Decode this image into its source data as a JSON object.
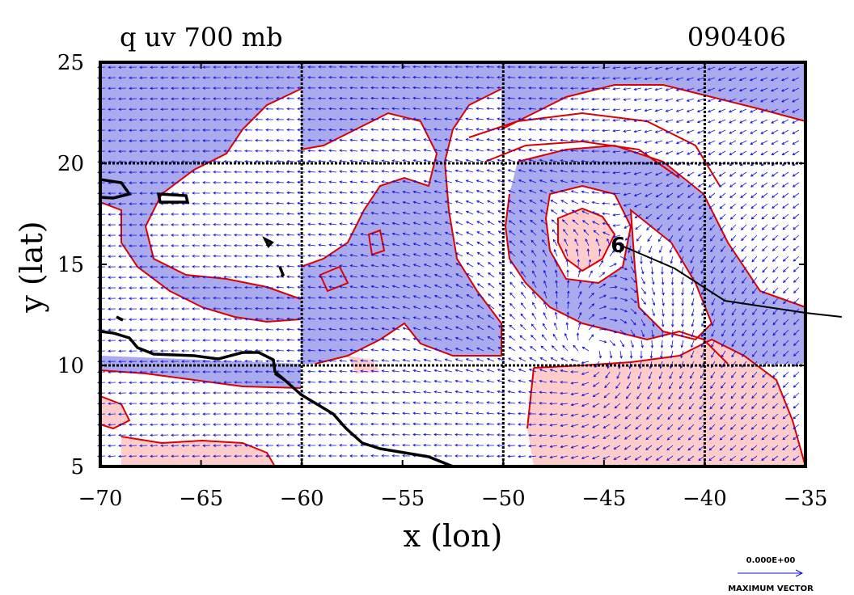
{
  "chart_data": {
    "type": "contour-vector-map",
    "title_left": "q uv 700 mb",
    "title_right": "090406",
    "xlabel": "x (lon)",
    "ylabel": "y (lat)",
    "xlim": [
      -70,
      -35
    ],
    "ylim": [
      5,
      25
    ],
    "xticks": [
      -70,
      -65,
      -60,
      -55,
      -50,
      -45,
      -40,
      -35
    ],
    "yticks": [
      5,
      10,
      15,
      20,
      25
    ],
    "gridlines_x": [
      -60,
      -50,
      -40
    ],
    "gridlines_y": [
      10,
      20
    ],
    "storm_marker": {
      "symbol": "6",
      "lon": -44.3,
      "lat": 16.0
    },
    "track": [
      [
        -44.3,
        16.0
      ],
      [
        -41.5,
        14.8
      ],
      [
        -39.0,
        13.2
      ],
      [
        -35.0,
        12.6
      ],
      [
        -33.2,
        12.4
      ]
    ],
    "legend": {
      "value": "0.000E+00",
      "label": "MAXIMUM VECTOR"
    },
    "colors": {
      "moist": "#aaaaee",
      "dry": "#ffcccc",
      "contour": "#dd0000",
      "vector": "#1010dd",
      "coast": "#000000"
    }
  }
}
